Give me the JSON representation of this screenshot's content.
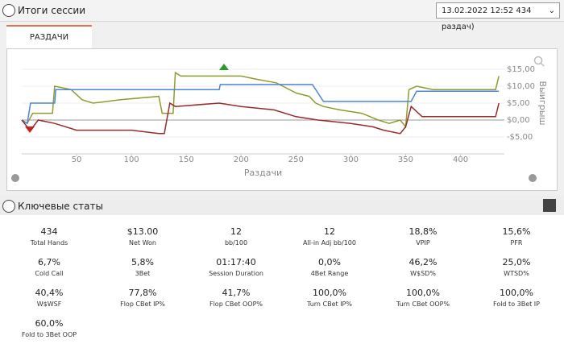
{
  "header": {
    "title": "Итоги сессии",
    "session": "13.02.2022 12:52 434 раздач)"
  },
  "tab": "РАЗДАЧИ",
  "chart_data": {
    "type": "line",
    "x_label": "Раздачи",
    "y_label": "Выигрыш",
    "xlim": [
      0,
      440
    ],
    "xticks": [
      50,
      100,
      150,
      200,
      250,
      300,
      350,
      400
    ],
    "ylim": [
      -10,
      20
    ],
    "yticks": [
      {
        "value": -5,
        "label": "-$5,00"
      },
      {
        "value": 0,
        "label": "$0,00"
      },
      {
        "value": 5,
        "label": "$5,00"
      },
      {
        "value": 10,
        "label": "$10,00"
      },
      {
        "value": 15,
        "label": "$15,00"
      }
    ],
    "grid": true,
    "series": [
      {
        "color": "#8f9c2c",
        "x": [
          0,
          5,
          10,
          28,
          30,
          45,
          55,
          65,
          90,
          125,
          128,
          138,
          140,
          145,
          175,
          200,
          215,
          232,
          238,
          250,
          262,
          268,
          275,
          290,
          310,
          325,
          335,
          345,
          350,
          353,
          360,
          375,
          390,
          410,
          432,
          435
        ],
        "values": [
          0,
          -1,
          2,
          2,
          10,
          9,
          6,
          5,
          6,
          7,
          2,
          2,
          14,
          13,
          13,
          13,
          12,
          11,
          10,
          8,
          7,
          5,
          4,
          3,
          2,
          0,
          -1,
          0,
          -2,
          9,
          10,
          9,
          9,
          9,
          9,
          13
        ]
      },
      {
        "color": "#4f84d9",
        "x": [
          0,
          5,
          8,
          30,
          31,
          180,
          181,
          265,
          275,
          355,
          360,
          435
        ],
        "values": [
          0,
          -1,
          5,
          5,
          9,
          9,
          10.5,
          10.5,
          5.5,
          5.5,
          8.5,
          8.5
        ]
      },
      {
        "color": "#9b2a2a",
        "x": [
          0,
          5,
          8,
          15,
          30,
          50,
          100,
          125,
          130,
          135,
          140,
          180,
          200,
          230,
          250,
          270,
          300,
          320,
          330,
          345,
          350,
          355,
          365,
          400,
          432,
          435
        ],
        "values": [
          0,
          -2,
          -3,
          0,
          -1,
          -3,
          -3,
          -4,
          -4,
          5,
          4,
          5,
          4,
          3,
          1,
          0,
          -1,
          -2,
          -3,
          -4,
          -2,
          4,
          1,
          1,
          1,
          5
        ]
      }
    ]
  },
  "stats": {
    "title": "Ключевые статы",
    "items": [
      {
        "value": "434",
        "label": "Total Hands"
      },
      {
        "value": "$13.00",
        "label": "Net Won"
      },
      {
        "value": "12",
        "label": "bb/100"
      },
      {
        "value": "12",
        "label": "All-in Adj bb/100"
      },
      {
        "value": "18,8%",
        "label": "VPIP"
      },
      {
        "value": "15,6%",
        "label": "PFR"
      },
      {
        "value": "6,7%",
        "label": "Cold Call"
      },
      {
        "value": "5,8%",
        "label": "3Bet"
      },
      {
        "value": "01:17:40",
        "label": "Session Duration"
      },
      {
        "value": "0,0%",
        "label": "4Bet Range"
      },
      {
        "value": "46,2%",
        "label": "W$SD%"
      },
      {
        "value": "25,0%",
        "label": "WTSD%"
      },
      {
        "value": "40,4%",
        "label": "W$WSF"
      },
      {
        "value": "77,8%",
        "label": "Flop CBet IP%"
      },
      {
        "value": "41,7%",
        "label": "Flop CBet OOP%"
      },
      {
        "value": "100,0%",
        "label": "Turn CBet IP%"
      },
      {
        "value": "100,0%",
        "label": "Turn CBet OOP%"
      },
      {
        "value": "100,0%",
        "label": "Fold to 3Bet IP"
      },
      {
        "value": "60,0%",
        "label": "Fold to 3Bet OOP"
      }
    ]
  }
}
